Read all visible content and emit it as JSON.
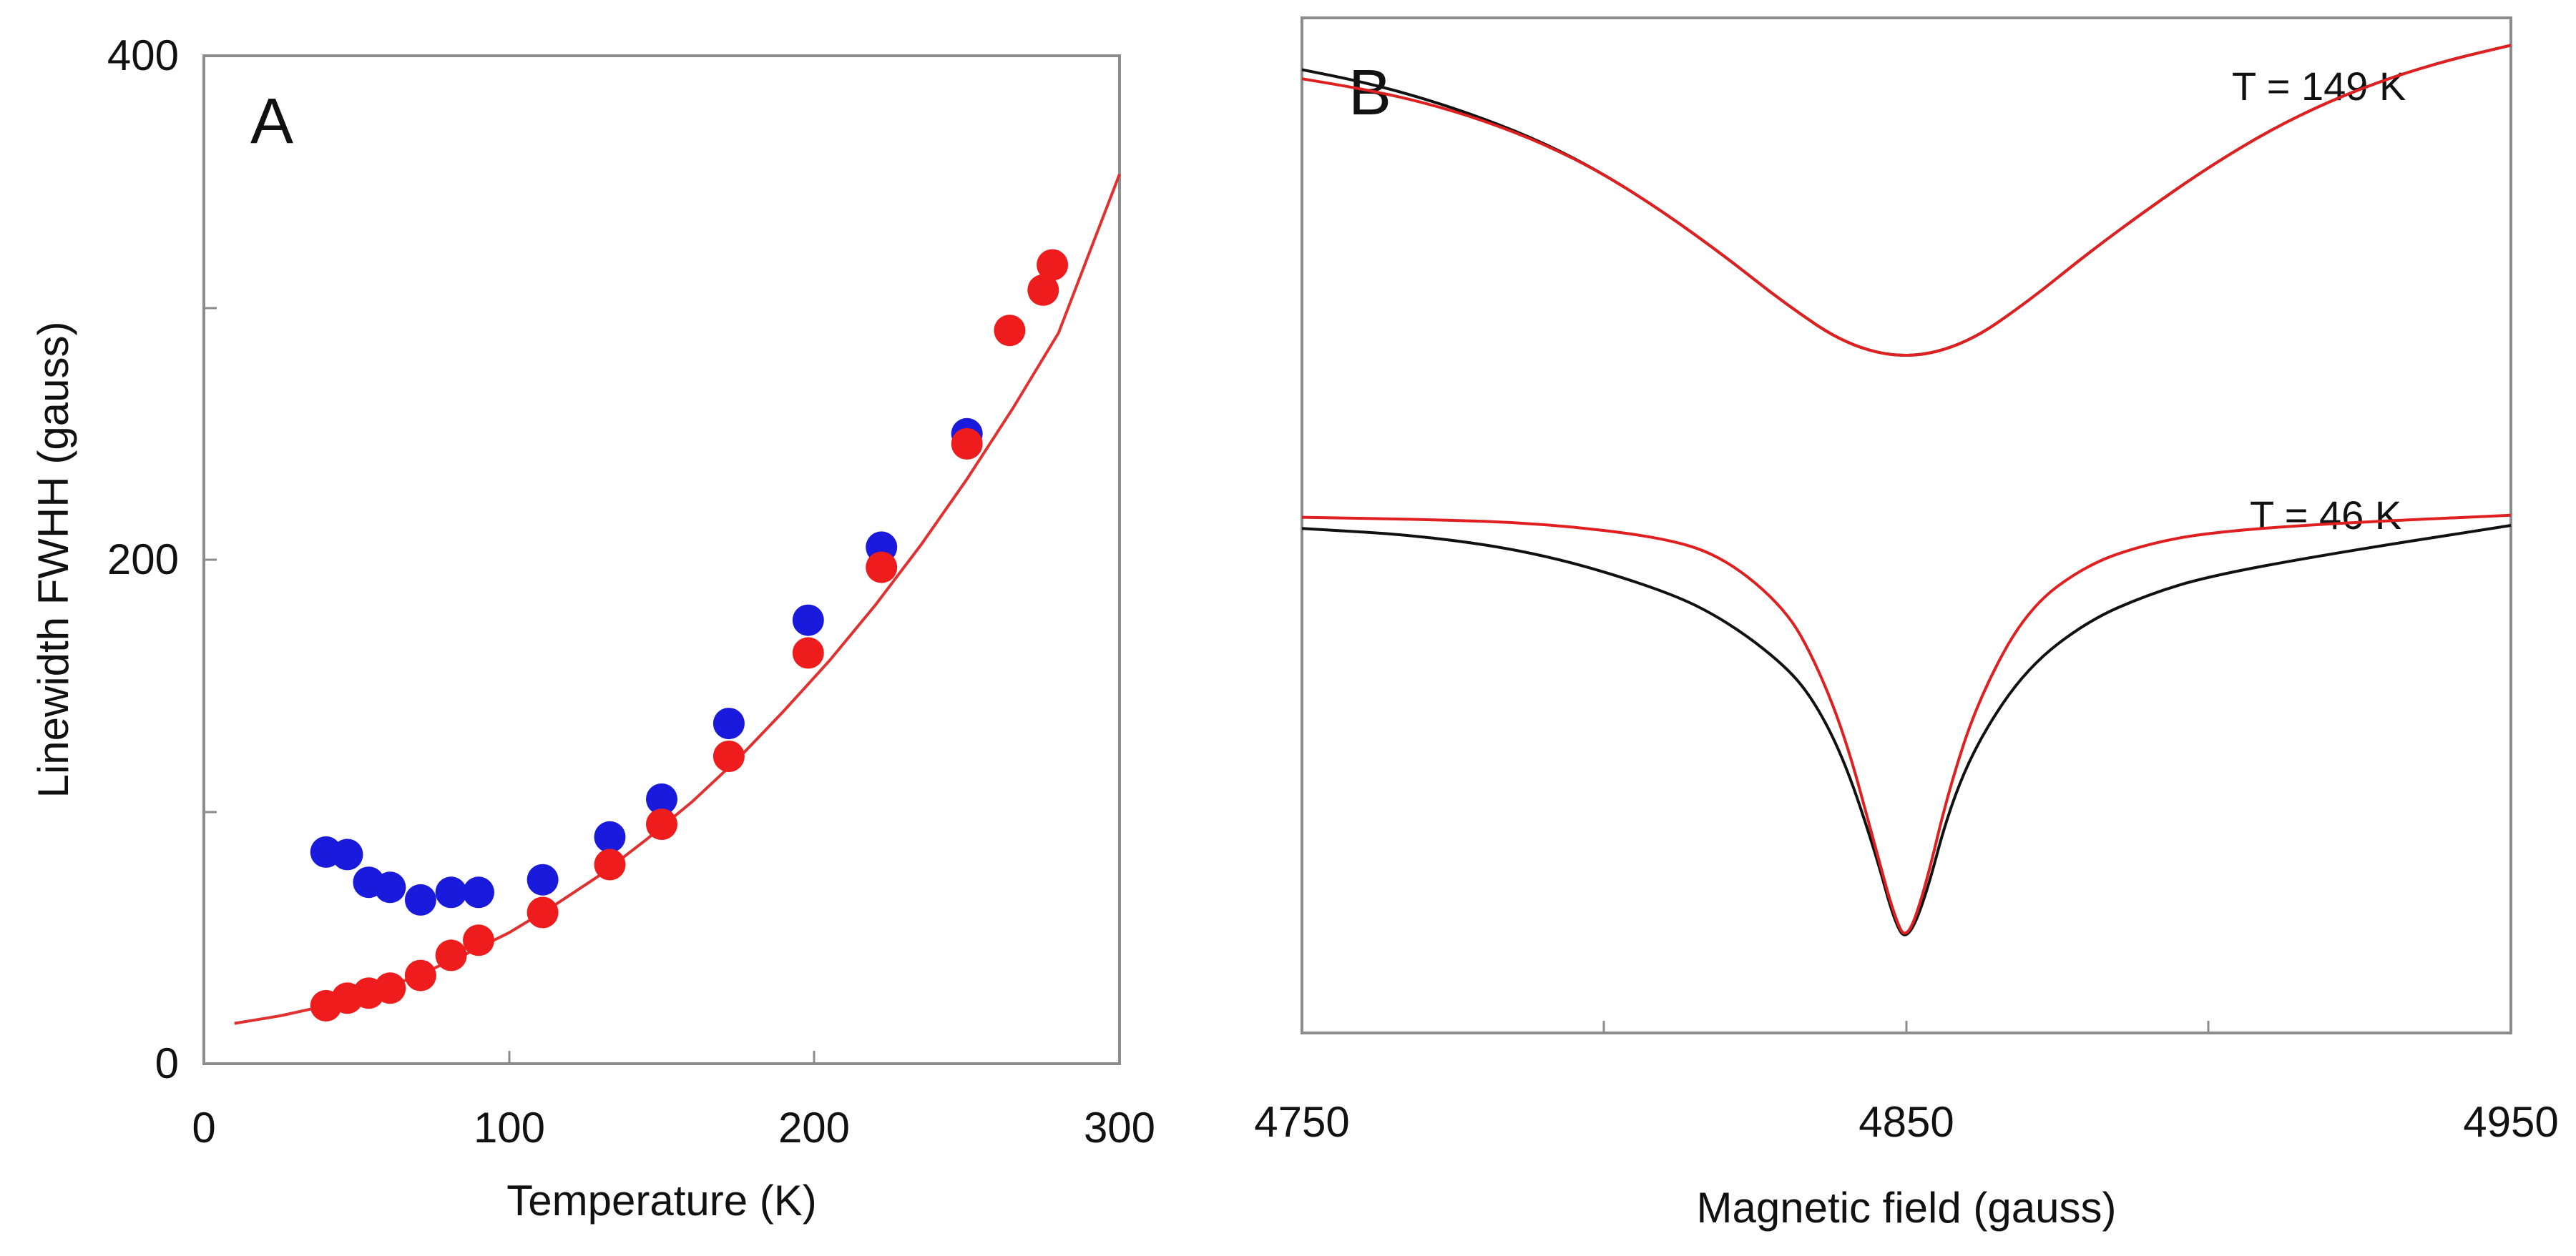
{
  "chart_data": [
    {
      "panel": "A",
      "type": "scatter",
      "xlabel": "Temperature (K)",
      "ylabel": "Linewidth FWHH (gauss)",
      "xlim": [
        0,
        300
      ],
      "ylim": [
        0,
        400
      ],
      "xticks": [
        0,
        100,
        200,
        300
      ],
      "yticks": [
        0,
        200,
        400
      ],
      "series": [
        {
          "name": "blue",
          "color": "#1a1adc",
          "x": [
            40,
            47,
            54,
            61,
            71,
            81,
            90,
            111,
            133,
            150,
            172,
            198,
            222,
            250
          ],
          "y": [
            84,
            83,
            72,
            70,
            65,
            68,
            68,
            73,
            90,
            105,
            135,
            176,
            205,
            250
          ]
        },
        {
          "name": "red",
          "color": "#ee1c1c",
          "x": [
            40,
            47,
            54,
            61,
            71,
            81,
            90,
            111,
            133,
            150,
            172,
            198,
            222,
            250,
            264,
            275,
            278
          ],
          "y": [
            23,
            26,
            28,
            30,
            35,
            43,
            49,
            60,
            79,
            95,
            122,
            163,
            197,
            246,
            291,
            307,
            317
          ]
        },
        {
          "name": "fit",
          "type": "line",
          "color": "#e03030",
          "x": [
            10,
            25,
            40,
            55,
            70,
            85,
            100,
            115,
            130,
            145,
            160,
            175,
            190,
            205,
            220,
            235,
            250,
            265,
            280,
            300
          ],
          "y": [
            16,
            19,
            23,
            28,
            35,
            43,
            52,
            63,
            75,
            89,
            104,
            121,
            140,
            160,
            182,
            206,
            232,
            260,
            290,
            353
          ]
        }
      ]
    },
    {
      "panel": "B",
      "type": "line",
      "xlabel": "Magnetic field (gauss)",
      "ylabel": "",
      "xlim": [
        4750,
        4950
      ],
      "ylim": [
        0,
        1
      ],
      "xticks": [
        4750,
        4850,
        4950
      ],
      "annotations": [
        "T = 149 K",
        "T = 46 K"
      ],
      "series": [
        {
          "name": "T = 149 K experiment",
          "color": "#111111",
          "x": [
            4750,
            4760,
            4770,
            4780,
            4790,
            4800,
            4810,
            4820,
            4830,
            4840,
            4850,
            4860,
            4870,
            4880,
            4890,
            4900,
            4910,
            4920,
            4930,
            4940,
            4950
          ],
          "y": [
            0.949,
            0.937,
            0.921,
            0.901,
            0.877,
            0.846,
            0.808,
            0.765,
            0.718,
            0.678,
            0.664,
            0.679,
            0.72,
            0.768,
            0.812,
            0.853,
            0.889,
            0.918,
            0.941,
            0.959,
            0.973
          ]
        },
        {
          "name": "T = 149 K fit",
          "color": "#e02020",
          "x": [
            4750,
            4760,
            4770,
            4780,
            4790,
            4800,
            4810,
            4820,
            4830,
            4840,
            4850,
            4860,
            4870,
            4880,
            4890,
            4900,
            4910,
            4920,
            4930,
            4940,
            4950
          ],
          "y": [
            0.94,
            0.93,
            0.917,
            0.899,
            0.876,
            0.846,
            0.808,
            0.765,
            0.718,
            0.678,
            0.664,
            0.679,
            0.72,
            0.768,
            0.812,
            0.853,
            0.889,
            0.918,
            0.941,
            0.959,
            0.973
          ]
        },
        {
          "name": "T = 46 K experiment",
          "color": "#111111",
          "x": [
            4750,
            4770,
            4790,
            4810,
            4820,
            4830,
            4835,
            4840,
            4845,
            4848,
            4850,
            4853,
            4857,
            4862,
            4870,
            4880,
            4890,
            4900,
            4920,
            4950
          ],
          "y": [
            0.497,
            0.49,
            0.472,
            0.436,
            0.407,
            0.362,
            0.325,
            0.265,
            0.175,
            0.11,
            0.09,
            0.13,
            0.22,
            0.29,
            0.36,
            0.406,
            0.432,
            0.45,
            0.472,
            0.5
          ]
        },
        {
          "name": "T = 46 K fit",
          "color": "#e02020",
          "x": [
            4750,
            4770,
            4790,
            4810,
            4820,
            4830,
            4835,
            4840,
            4845,
            4848,
            4850,
            4853,
            4857,
            4862,
            4870,
            4880,
            4890,
            4900,
            4920,
            4950
          ],
          "y": [
            0.508,
            0.506,
            0.502,
            0.488,
            0.468,
            0.418,
            0.365,
            0.29,
            0.18,
            0.115,
            0.09,
            0.14,
            0.24,
            0.33,
            0.418,
            0.462,
            0.482,
            0.493,
            0.502,
            0.51
          ]
        }
      ]
    }
  ]
}
